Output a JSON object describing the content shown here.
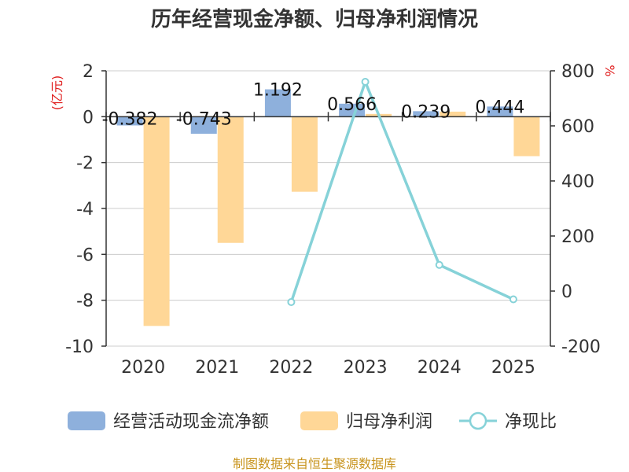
{
  "chart_data": {
    "type": "bar+line",
    "title": "历年经营现金净额、归母净利润情况",
    "categories": [
      "2020",
      "2021",
      "2022",
      "2023",
      "2024",
      "2025"
    ],
    "series": [
      {
        "name": "经营活动现金流净额",
        "type": "bar",
        "axis": "left",
        "values": [
          -0.382,
          -0.743,
          1.192,
          0.566,
          0.239,
          0.444
        ],
        "labels": [
          "-0.382",
          "-0.743",
          "1.192",
          "0.566",
          "0.239",
          "0.444"
        ]
      },
      {
        "name": "归母净利润",
        "type": "bar",
        "axis": "left",
        "values": [
          -9.12,
          -5.5,
          -3.27,
          0.12,
          0.22,
          -1.72
        ]
      },
      {
        "name": "净现比",
        "type": "line",
        "axis": "right",
        "values": [
          null,
          null,
          -40,
          760,
          95,
          -30
        ]
      }
    ],
    "y_left": {
      "unit": "(亿元)",
      "ylim": [
        -10,
        2
      ],
      "ticks": [
        2,
        0,
        -2,
        -4,
        -6,
        -8,
        -10
      ]
    },
    "y_right": {
      "unit": "%",
      "ylim": [
        -200,
        800
      ],
      "ticks": [
        800,
        600,
        400,
        200,
        0,
        -200
      ]
    },
    "source": "制图数据来自恒生聚源数据库"
  },
  "colors": {
    "cash_bar": "#8eb0dc",
    "profit_bar": "#ffd797",
    "ratio_line": "#86d2d8",
    "unit_red": "#e02020",
    "source_gold": "#c8941e",
    "grid": "#cccccc",
    "axis": "#333333"
  }
}
